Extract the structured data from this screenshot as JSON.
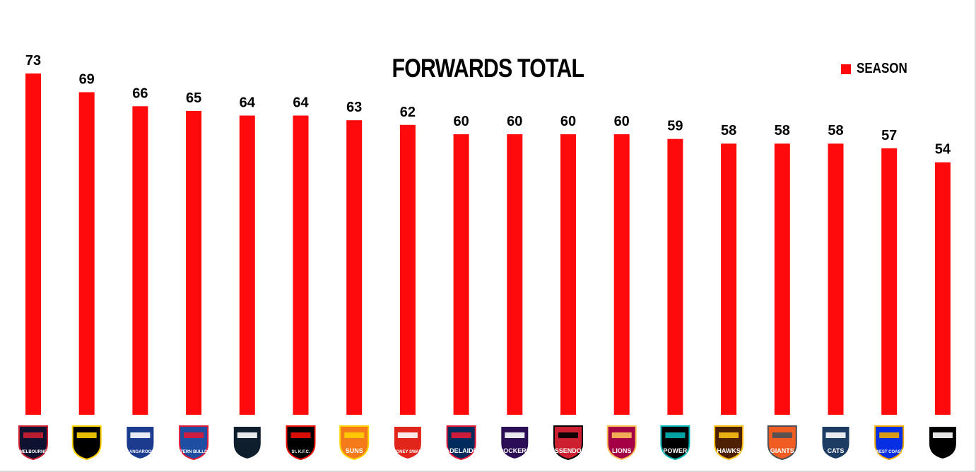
{
  "chart_data": {
    "type": "bar",
    "title": "FORWARDS TOTAL",
    "legend": {
      "position": "top-right",
      "entries": [
        "SEASON"
      ]
    },
    "xlabel": "",
    "ylabel": "",
    "grid": false,
    "ylim": [
      0,
      73
    ],
    "categories": [
      "Melbourne",
      "Richmond",
      "Kangaroos",
      "Western Bulldogs",
      "Carlton",
      "St Kilda",
      "Gold Coast Suns",
      "Sydney Swans",
      "Adelaide",
      "Fremantle Dockers",
      "Essendon",
      "Brisbane Lions",
      "Port Adelaide Power",
      "Hawthorn Hawks",
      "GWS Giants",
      "Geelong Cats",
      "West Coast",
      "Collingwood"
    ],
    "series": [
      {
        "name": "SEASON",
        "color": "#ff0a0a",
        "values": [
          73,
          69,
          66,
          65,
          64,
          64,
          63,
          62,
          60,
          60,
          60,
          60,
          59,
          58,
          58,
          58,
          57,
          54
        ],
        "labels": [
          "73",
          "69",
          "66",
          "65",
          "64",
          "64",
          "63",
          "62",
          "60",
          "60",
          "60",
          "60",
          "59",
          "58",
          "58",
          "58",
          "57",
          "54"
        ]
      }
    ]
  },
  "logos": [
    {
      "icon": "melbourne-logo-icon",
      "text": "MELBOURNE",
      "color": "#0f1131",
      "accent": "#cc2031"
    },
    {
      "icon": "richmond-logo-icon",
      "text": "",
      "color": "#000000",
      "accent": "#ffd200"
    },
    {
      "icon": "kangaroos-logo-icon",
      "text": "KANGAROOS",
      "color": "#1a3b8e",
      "accent": "#ffffff"
    },
    {
      "icon": "western-bulldogs-logo-icon",
      "text": "WESTERN BULLDOGS",
      "color": "#1d4ea1",
      "accent": "#e21937"
    },
    {
      "icon": "carlton-logo-icon",
      "text": "",
      "color": "#0e1e2d",
      "accent": "#ffffff"
    },
    {
      "icon": "st-kilda-logo-icon",
      "text": "St. K.F.C.",
      "color": "#000000",
      "accent": "#ed0f05"
    },
    {
      "icon": "gold-coast-suns-logo-icon",
      "text": "SUNS",
      "color": "#f47a1a",
      "accent": "#ffd200"
    },
    {
      "icon": "sydney-swans-logo-icon",
      "text": "SYDNEY SWANS",
      "color": "#e1251b",
      "accent": "#ffffff"
    },
    {
      "icon": "adelaide-logo-icon",
      "text": "ADELAIDE",
      "color": "#002b5c",
      "accent": "#e21937"
    },
    {
      "icon": "fremantle-dockers-logo-icon",
      "text": "DOCKERS",
      "color": "#2a0d54",
      "accent": "#ffffff"
    },
    {
      "icon": "essendon-logo-icon",
      "text": "ESSENDON",
      "color": "#cc2031",
      "accent": "#000000"
    },
    {
      "icon": "brisbane-lions-logo-icon",
      "text": "LIONS",
      "color": "#a30046",
      "accent": "#fdbe57"
    },
    {
      "icon": "port-adelaide-logo-icon",
      "text": "POWER",
      "color": "#000000",
      "accent": "#01b5b6"
    },
    {
      "icon": "hawthorn-logo-icon",
      "text": "HAWKS",
      "color": "#4d2004",
      "accent": "#fbbf15"
    },
    {
      "icon": "gws-giants-logo-icon",
      "text": "GIANTS",
      "color": "#f15c22",
      "accent": "#4a4f55"
    },
    {
      "icon": "geelong-logo-icon",
      "text": "CATS",
      "color": "#1c3c63",
      "accent": "#ffffff"
    },
    {
      "icon": "west-coast-logo-icon",
      "text": "WEST COAST",
      "color": "#062ee2",
      "accent": "#f2a900"
    },
    {
      "icon": "collingwood-logo-icon",
      "text": "",
      "color": "#000000",
      "accent": "#ffffff"
    }
  ]
}
